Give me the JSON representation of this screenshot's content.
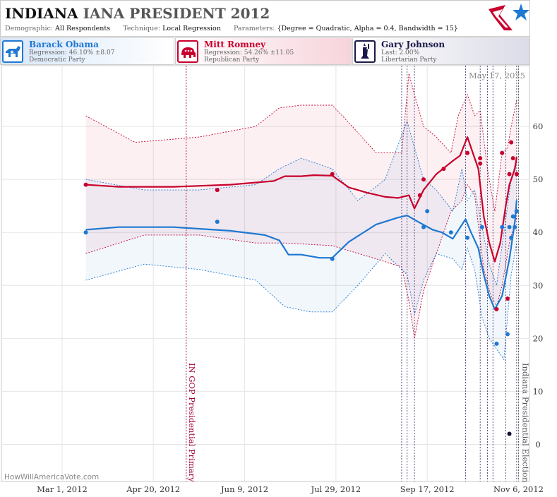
{
  "header": {
    "title_state": "INDIANA",
    "title_rest": "IANA PRESIDENT 2012",
    "demographic_label": "Demographic:",
    "demographic_value": "All Respondents",
    "technique_label": "Technique:",
    "technique_value": "Local Regression",
    "parameters_label": "Parameters:",
    "parameters_value": "{Degree = Quadratic, Alpha = 0.4, Bandwidth = 15}"
  },
  "candidates": [
    {
      "name": "Barack Obama",
      "line1": "Regression: 46.10% ±8.07",
      "line2": "Democratic Party",
      "color": "#1f78d1",
      "icon": "donkey-icon"
    },
    {
      "name": "Mitt Romney",
      "line1": "Regression: 54.26% ±11.05",
      "line2": "Republican Party",
      "color": "#c8002d",
      "icon": "elephant-icon"
    },
    {
      "name": "Gary Johnson",
      "line1": "Last: 2.00%",
      "line2": "Libertarian Party",
      "color": "#1a1a4a",
      "icon": "statue-of-liberty-icon"
    }
  ],
  "date_stamp": "May 17, 2025",
  "watermark": "HowWillAmericaVote.com",
  "chart_data": {
    "type": "line",
    "x_range": [
      "2012-01-27",
      "2012-11-12"
    ],
    "y_range": [
      -7,
      70
    ],
    "x_ticks": [
      {
        "date": "2012-03-01",
        "label": "Mar 1, 2012"
      },
      {
        "date": "2012-04-20",
        "label": "Apr 20, 2012"
      },
      {
        "date": "2012-06-09",
        "label": "Jun 9, 2012"
      },
      {
        "date": "2012-07-29",
        "label": "Jul 29, 2012"
      },
      {
        "date": "2012-09-17",
        "label": "Sep 17, 2012"
      },
      {
        "date": "2012-11-06",
        "label": "Nov 6, 2012"
      }
    ],
    "y_ticks": [
      0,
      10,
      20,
      30,
      40,
      50,
      60
    ],
    "events": [
      {
        "date": "2012-05-08",
        "label": "IN GOP Presidential Primary",
        "color": "#a0003a"
      },
      {
        "date": "2012-11-06",
        "label": "Indiana Presidential Election",
        "color": "#555555"
      }
    ],
    "poll_lines": [
      "2012-09-03",
      "2012-09-06",
      "2012-09-10",
      "2012-10-08",
      "2012-10-16",
      "2012-10-20",
      "2012-10-23",
      "2012-10-30",
      "2012-11-05"
    ],
    "series": [
      {
        "name": "Mitt Romney",
        "color": "#c8002d",
        "trend": [
          [
            "2012-03-14",
            49
          ],
          [
            "2012-04-01",
            48.6
          ],
          [
            "2012-05-01",
            48.6
          ],
          [
            "2012-06-01",
            49
          ],
          [
            "2012-06-25",
            49.7
          ],
          [
            "2012-07-01",
            50.6
          ],
          [
            "2012-07-10",
            50.6
          ],
          [
            "2012-07-17",
            50.8
          ],
          [
            "2012-07-27",
            50.7
          ],
          [
            "2012-08-05",
            48.5
          ],
          [
            "2012-08-15",
            47.5
          ],
          [
            "2012-08-25",
            46.7
          ],
          [
            "2012-09-01",
            46.5
          ],
          [
            "2012-09-07",
            47
          ],
          [
            "2012-09-10",
            44.5
          ],
          [
            "2012-09-15",
            48
          ],
          [
            "2012-09-22",
            51
          ],
          [
            "2012-10-01",
            53.5
          ],
          [
            "2012-10-05",
            54.5
          ],
          [
            "2012-10-09",
            58
          ],
          [
            "2012-10-12",
            55
          ],
          [
            "2012-10-15",
            52
          ],
          [
            "2012-10-18",
            43
          ],
          [
            "2012-10-21",
            38
          ],
          [
            "2012-10-24",
            34.5
          ],
          [
            "2012-10-27",
            38
          ],
          [
            "2012-10-30",
            45
          ],
          [
            "2012-11-01",
            49
          ],
          [
            "2012-11-04",
            52
          ],
          [
            "2012-11-05",
            54.2
          ]
        ],
        "upper": [
          [
            "2012-03-14",
            62
          ],
          [
            "2012-04-10",
            57
          ],
          [
            "2012-05-15",
            58
          ],
          [
            "2012-06-15",
            60
          ],
          [
            "2012-06-28",
            63.5
          ],
          [
            "2012-07-10",
            64
          ],
          [
            "2012-07-27",
            64
          ],
          [
            "2012-08-07",
            60
          ],
          [
            "2012-08-20",
            55
          ],
          [
            "2012-09-03",
            55
          ],
          [
            "2012-09-07",
            70
          ],
          [
            "2012-09-10",
            66
          ],
          [
            "2012-09-15",
            60
          ],
          [
            "2012-09-22",
            58
          ],
          [
            "2012-09-30",
            55
          ],
          [
            "2012-10-04",
            62
          ],
          [
            "2012-10-09",
            66
          ],
          [
            "2012-10-13",
            62
          ],
          [
            "2012-10-16",
            63
          ],
          [
            "2012-10-20",
            52
          ],
          [
            "2012-10-24",
            44
          ],
          [
            "2012-10-28",
            55
          ],
          [
            "2012-10-31",
            56
          ],
          [
            "2012-11-02",
            60
          ],
          [
            "2012-11-05",
            65
          ]
        ],
        "lower": [
          [
            "2012-03-14",
            36
          ],
          [
            "2012-04-15",
            39.5
          ],
          [
            "2012-05-15",
            39.5
          ],
          [
            "2012-06-15",
            38
          ],
          [
            "2012-07-01",
            38
          ],
          [
            "2012-07-27",
            37.5
          ],
          [
            "2012-08-20",
            35
          ],
          [
            "2012-09-03",
            33.5
          ],
          [
            "2012-09-07",
            27
          ],
          [
            "2012-09-10",
            20
          ],
          [
            "2012-09-15",
            29
          ],
          [
            "2012-09-22",
            36
          ],
          [
            "2012-09-30",
            44
          ],
          [
            "2012-10-06",
            46
          ],
          [
            "2012-10-09",
            49
          ],
          [
            "2012-10-13",
            47
          ],
          [
            "2012-10-18",
            33
          ],
          [
            "2012-10-22",
            28
          ],
          [
            "2012-10-25",
            26
          ],
          [
            "2012-10-28",
            30
          ],
          [
            "2012-11-01",
            38
          ],
          [
            "2012-11-05",
            43
          ]
        ],
        "points": [
          [
            "2012-03-14",
            49
          ],
          [
            "2012-05-25",
            48
          ],
          [
            "2012-07-27",
            51
          ],
          [
            "2012-09-13",
            47
          ],
          [
            "2012-09-15",
            50
          ],
          [
            "2012-09-26",
            52
          ],
          [
            "2012-10-09",
            55
          ],
          [
            "2012-10-16",
            54
          ],
          [
            "2012-10-16",
            53
          ],
          [
            "2012-10-25",
            25.5
          ],
          [
            "2012-10-28",
            55
          ],
          [
            "2012-10-31",
            27.5
          ],
          [
            "2012-11-01",
            51
          ],
          [
            "2012-11-02",
            57
          ],
          [
            "2012-11-03",
            54
          ],
          [
            "2012-11-05",
            51
          ]
        ]
      },
      {
        "name": "Barack Obama",
        "color": "#1f78d1",
        "trend": [
          [
            "2012-03-14",
            40.5
          ],
          [
            "2012-04-01",
            41
          ],
          [
            "2012-05-01",
            41
          ],
          [
            "2012-06-01",
            40.3
          ],
          [
            "2012-06-20",
            39.5
          ],
          [
            "2012-06-28",
            38.5
          ],
          [
            "2012-07-03",
            35.8
          ],
          [
            "2012-07-10",
            35.8
          ],
          [
            "2012-07-20",
            35.2
          ],
          [
            "2012-07-27",
            35.2
          ],
          [
            "2012-08-05",
            38.2
          ],
          [
            "2012-08-20",
            41.5
          ],
          [
            "2012-09-01",
            42.8
          ],
          [
            "2012-09-06",
            43.2
          ],
          [
            "2012-09-12",
            42
          ],
          [
            "2012-09-20",
            40.5
          ],
          [
            "2012-09-25",
            40
          ],
          [
            "2012-10-01",
            38.8
          ],
          [
            "2012-10-08",
            42.5
          ],
          [
            "2012-10-11",
            40
          ],
          [
            "2012-10-15",
            37
          ],
          [
            "2012-10-18",
            32
          ],
          [
            "2012-10-21",
            28
          ],
          [
            "2012-10-24",
            25.5
          ],
          [
            "2012-10-28",
            28
          ],
          [
            "2012-11-01",
            35
          ],
          [
            "2012-11-04",
            42
          ],
          [
            "2012-11-05",
            46.1
          ]
        ],
        "upper": [
          [
            "2012-03-14",
            50
          ],
          [
            "2012-04-15",
            48
          ],
          [
            "2012-05-15",
            48
          ],
          [
            "2012-06-15",
            49
          ],
          [
            "2012-06-28",
            52
          ],
          [
            "2012-07-10",
            54
          ],
          [
            "2012-07-27",
            52
          ],
          [
            "2012-08-10",
            46
          ],
          [
            "2012-08-25",
            50
          ],
          [
            "2012-09-06",
            61
          ],
          [
            "2012-09-10",
            56
          ],
          [
            "2012-09-15",
            50
          ],
          [
            "2012-09-22",
            48
          ],
          [
            "2012-10-01",
            44
          ],
          [
            "2012-10-06",
            52
          ],
          [
            "2012-10-09",
            46
          ],
          [
            "2012-10-13",
            48
          ],
          [
            "2012-10-17",
            41
          ],
          [
            "2012-10-21",
            34
          ],
          [
            "2012-10-25",
            30
          ],
          [
            "2012-10-29",
            40
          ],
          [
            "2012-11-02",
            50
          ],
          [
            "2012-11-05",
            54
          ]
        ],
        "lower": [
          [
            "2012-03-14",
            31
          ],
          [
            "2012-04-15",
            34
          ],
          [
            "2012-05-15",
            33
          ],
          [
            "2012-06-15",
            31
          ],
          [
            "2012-07-01",
            26
          ],
          [
            "2012-07-15",
            25
          ],
          [
            "2012-07-27",
            25
          ],
          [
            "2012-08-10",
            30
          ],
          [
            "2012-08-25",
            36
          ],
          [
            "2012-09-06",
            32
          ],
          [
            "2012-09-10",
            24.5
          ],
          [
            "2012-09-15",
            31
          ],
          [
            "2012-09-22",
            36
          ],
          [
            "2012-10-01",
            35
          ],
          [
            "2012-10-06",
            33
          ],
          [
            "2012-10-09",
            37
          ],
          [
            "2012-10-13",
            33
          ],
          [
            "2012-10-17",
            24
          ],
          [
            "2012-10-21",
            20
          ],
          [
            "2012-10-25",
            18
          ],
          [
            "2012-10-29",
            16
          ],
          [
            "2012-11-02",
            32
          ],
          [
            "2012-11-05",
            38
          ]
        ],
        "points": [
          [
            "2012-03-14",
            40
          ],
          [
            "2012-05-25",
            42
          ],
          [
            "2012-07-27",
            35
          ],
          [
            "2012-09-15",
            41
          ],
          [
            "2012-09-17",
            44
          ],
          [
            "2012-09-30",
            40
          ],
          [
            "2012-10-09",
            39
          ],
          [
            "2012-10-17",
            41
          ],
          [
            "2012-10-25",
            19
          ],
          [
            "2012-10-28",
            41
          ],
          [
            "2012-10-31",
            20.8
          ],
          [
            "2012-11-01",
            41
          ],
          [
            "2012-11-02",
            39
          ],
          [
            "2012-11-03",
            43
          ],
          [
            "2012-11-04",
            41
          ],
          [
            "2012-11-05",
            44
          ]
        ]
      },
      {
        "name": "Gary Johnson",
        "color": "#111133",
        "points": [
          [
            "2012-11-01",
            2
          ]
        ]
      }
    ]
  }
}
